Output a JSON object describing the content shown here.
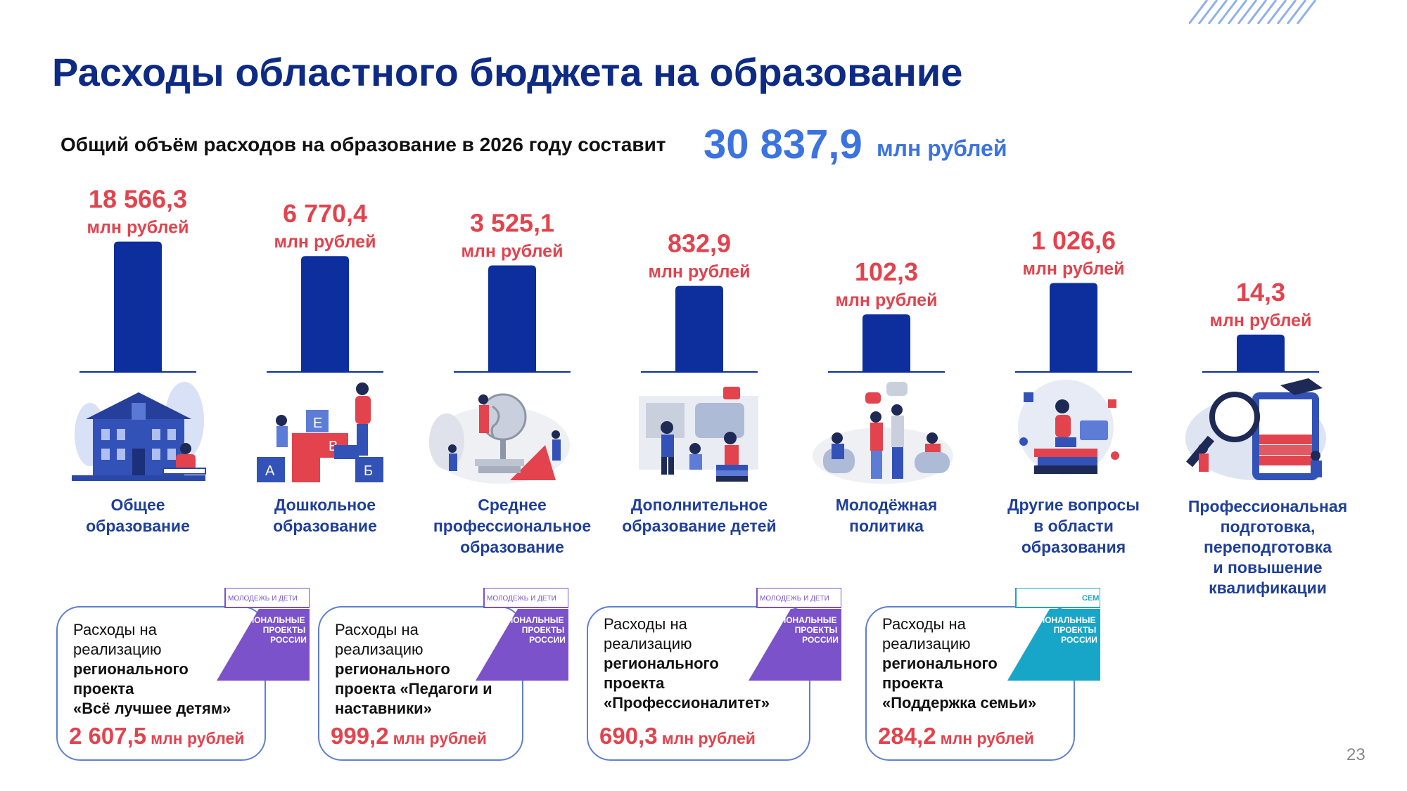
{
  "title": "Расходы областного бюджета на образование",
  "total": {
    "text": "Общий объём расходов на образование в 2026 году составит",
    "value": "30 837,9",
    "unit": "млн рублей"
  },
  "colors": {
    "bar": "#0d2f9e",
    "value": "#e2434d",
    "title": "#0d2a84",
    "label": "#1f3f9a",
    "total": "#3b73e0",
    "purple_badge": "#7b52c9",
    "teal_badge": "#18a6c8"
  },
  "chart_data": {
    "type": "bar",
    "title": "",
    "unit": "млн рублей",
    "categories": [
      "Общее образование",
      "Дошкольное образование",
      "Среднее профессиональное образование",
      "Дополнительное образование детей",
      "Молодёжная политика",
      "Другие вопросы в области образования",
      "Профессиональная подготовка, переподготовка и повышение квалификации"
    ],
    "values": [
      18566.3,
      6770.4,
      3525.1,
      832.9,
      102.3,
      1026.6,
      14.3
    ],
    "value_labels": [
      "18 566,3",
      "6 770,4",
      "3 525,1",
      "832,9",
      "102,3",
      "1 026,6",
      "14,3"
    ],
    "xlabel": "",
    "ylabel": "",
    "legend": "none",
    "grid": false
  },
  "categories_display": [
    {
      "label": "Общее\nобразование",
      "icon": "school-building-illustration"
    },
    {
      "label": "Дошкольное\nобразование",
      "icon": "alphabet-blocks-illustration"
    },
    {
      "label": "Среднее\nпрофессиональное\nобразование",
      "icon": "globe-geometry-illustration"
    },
    {
      "label": "Дополнительное\nобразование детей",
      "icon": "kids-reading-illustration"
    },
    {
      "label": "Молодёжная\nполитика",
      "icon": "youth-group-illustration"
    },
    {
      "label": "Другие вопросы\nв области\nобразования",
      "icon": "student-books-illustration"
    },
    {
      "label": "Профессиональная\nподготовка,\nпереподготовка\nи повышение\nквалификации",
      "icon": "magnifier-book-illustration"
    }
  ],
  "projects": [
    {
      "intro": "Расходы на\nреализацию",
      "name": "регионального\nпроекта\n«Всё лучшее детям»",
      "value": "2 607,5",
      "unit": "млн рублей",
      "badge_top": "МОЛОДЕЖЬ И ДЕТИ",
      "badge_main": "НАЦИОНАЛЬНЫЕ\nПРОЕКТЫ\nРОССИИ"
    },
    {
      "intro": "Расходы на\nреализацию",
      "name": "регионального\nпроекта «Педагоги и\nнаставники»",
      "value": "999,2",
      "unit": "млн рублей",
      "badge_top": "МОЛОДЕЖЬ И ДЕТИ",
      "badge_main": "НАЦИОНАЛЬНЫЕ\nПРОЕКТЫ\nРОССИИ"
    },
    {
      "intro": "Расходы на\nреализацию",
      "name": "регионального\nпроекта\n«Профессионалитет»",
      "value": "690,3",
      "unit": "млн рублей",
      "badge_top": "МОЛОДЕЖЬ И ДЕТИ",
      "badge_main": "НАЦИОНАЛЬНЫЕ\nПРОЕКТЫ\nРОССИИ"
    },
    {
      "intro": "Расходы на\nреализацию",
      "name": "регионального\nпроекта\n«Поддержка семьи»",
      "value": "284,2",
      "unit": "млн рублей",
      "badge_top": "СЕМЬЯ",
      "badge_main": "НАЦИОНАЛЬНЫЕ\nПРОЕКТЫ\nРОССИИ"
    }
  ],
  "page_number": "23"
}
